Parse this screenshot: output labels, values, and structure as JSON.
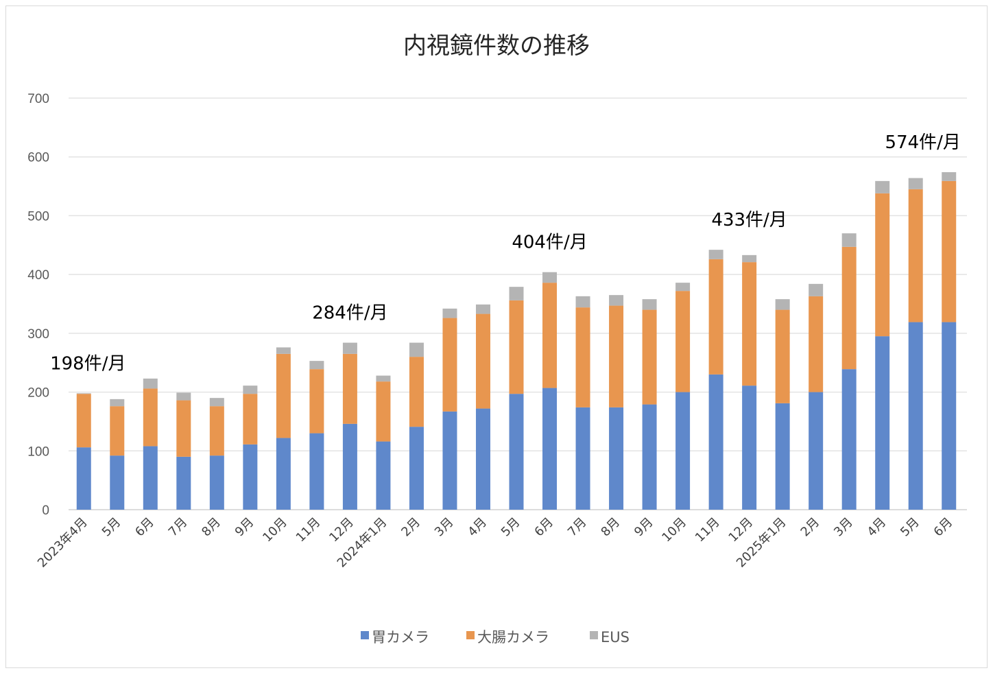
{
  "chart_data": {
    "type": "bar",
    "stacked": true,
    "title": "内視鏡件数の推移",
    "xlabel": "",
    "ylabel": "",
    "ylim": [
      0,
      700
    ],
    "yticks": [
      0,
      100,
      200,
      300,
      400,
      500,
      600,
      700
    ],
    "grid": true,
    "legend_position": "bottom",
    "categories": [
      "2023年4月",
      "5月",
      "6月",
      "7月",
      "8月",
      "9月",
      "10月",
      "11月",
      "12月",
      "2024年1月",
      "2月",
      "3月",
      "4月",
      "5月",
      "6月",
      "7月",
      "8月",
      "9月",
      "10月",
      "11月",
      "12月",
      "2025年1月",
      "2月",
      "3月",
      "4月",
      "5月",
      "6月"
    ],
    "series": [
      {
        "name": "胃カメラ",
        "color": "#5f88cb",
        "values": [
          106,
          92,
          108,
          90,
          92,
          111,
          122,
          130,
          146,
          116,
          141,
          167,
          172,
          197,
          207,
          174,
          174,
          179,
          200,
          230,
          211,
          181,
          200,
          239,
          295,
          319,
          319
        ]
      },
      {
        "name": "大腸カメラ",
        "color": "#e8964f",
        "values": [
          91,
          84,
          98,
          96,
          84,
          86,
          143,
          109,
          119,
          102,
          119,
          159,
          161,
          159,
          179,
          170,
          173,
          161,
          172,
          196,
          210,
          159,
          163,
          208,
          243,
          226,
          240
        ]
      },
      {
        "name": "EUS",
        "color": "#b4b4b4",
        "values": [
          1,
          12,
          17,
          13,
          14,
          14,
          11,
          14,
          19,
          10,
          24,
          16,
          16,
          23,
          18,
          19,
          18,
          18,
          14,
          16,
          12,
          18,
          21,
          23,
          21,
          19,
          15
        ]
      }
    ],
    "annotations": [
      {
        "index": 0,
        "text": "198件/月"
      },
      {
        "index": 8,
        "text": "284件/月"
      },
      {
        "index": 14,
        "text": "404件/月"
      },
      {
        "index": 20,
        "text": "433件/月"
      },
      {
        "index": 26,
        "text": "574件/月"
      }
    ]
  }
}
